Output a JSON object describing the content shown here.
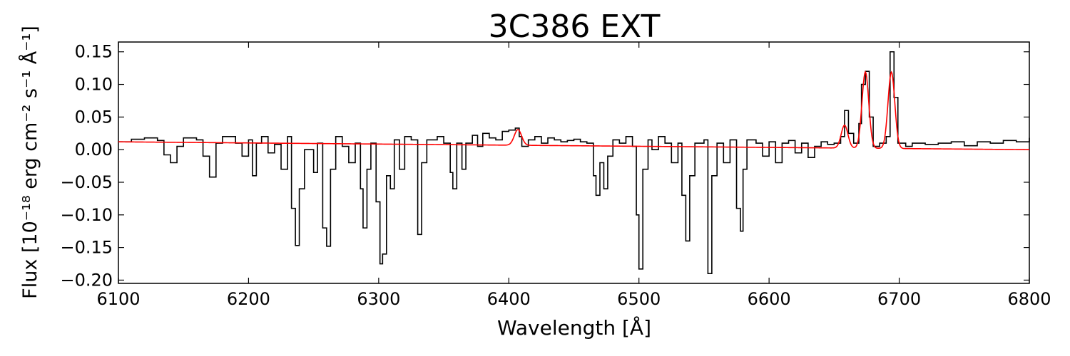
{
  "chart_data": {
    "type": "line",
    "title": "3C386 EXT",
    "xlabel": "Wavelength [Å]",
    "ylabel": "Flux [10⁻¹⁸ erg cm⁻² s⁻¹ Å⁻¹]",
    "xlim": [
      6100,
      6800
    ],
    "ylim": [
      -0.205,
      0.165
    ],
    "x_ticks": [
      "6100",
      "6200",
      "6300",
      "6400",
      "6500",
      "6600",
      "6700",
      "6800"
    ],
    "y_ticks": [
      "0.15",
      "0.10",
      "0.05",
      "0.00",
      "−0.05",
      "−0.10",
      "−0.15",
      "−0.20"
    ],
    "grid": false,
    "series": [
      {
        "style": "steps",
        "color": "#000000",
        "points": [
          [
            6100,
            0.012
          ],
          [
            6110,
            0.016
          ],
          [
            6120,
            0.018
          ],
          [
            6130,
            0.014
          ],
          [
            6135,
            -0.008
          ],
          [
            6140,
            -0.02
          ],
          [
            6145,
            0.005
          ],
          [
            6150,
            0.018
          ],
          [
            6160,
            0.015
          ],
          [
            6165,
            -0.01
          ],
          [
            6170,
            -0.042
          ],
          [
            6175,
            0.01
          ],
          [
            6180,
            0.02
          ],
          [
            6190,
            0.01
          ],
          [
            6195,
            -0.01
          ],
          [
            6200,
            0.015
          ],
          [
            6203,
            -0.04
          ],
          [
            6206,
            0.01
          ],
          [
            6210,
            0.02
          ],
          [
            6215,
            -0.005
          ],
          [
            6220,
            0.008
          ],
          [
            6225,
            -0.03
          ],
          [
            6230,
            0.02
          ],
          [
            6233,
            -0.09
          ],
          [
            6236,
            -0.147
          ],
          [
            6239,
            -0.06
          ],
          [
            6243,
            0.0
          ],
          [
            6250,
            -0.035
          ],
          [
            6253,
            0.01
          ],
          [
            6257,
            -0.12
          ],
          [
            6260,
            -0.148
          ],
          [
            6263,
            -0.03
          ],
          [
            6267,
            0.02
          ],
          [
            6272,
            0.005
          ],
          [
            6277,
            -0.02
          ],
          [
            6282,
            0.01
          ],
          [
            6286,
            -0.06
          ],
          [
            6288,
            -0.12
          ],
          [
            6291,
            -0.03
          ],
          [
            6294,
            0.01
          ],
          [
            6298,
            -0.08
          ],
          [
            6301,
            -0.175
          ],
          [
            6303,
            -0.16
          ],
          [
            6306,
            -0.04
          ],
          [
            6309,
            -0.06
          ],
          [
            6312,
            0.015
          ],
          [
            6316,
            -0.03
          ],
          [
            6320,
            0.02
          ],
          [
            6325,
            0.015
          ],
          [
            6330,
            -0.13
          ],
          [
            6333,
            -0.02
          ],
          [
            6337,
            0.015
          ],
          [
            6345,
            0.02
          ],
          [
            6350,
            0.01
          ],
          [
            6355,
            -0.035
          ],
          [
            6357,
            -0.06
          ],
          [
            6360,
            0.01
          ],
          [
            6364,
            -0.03
          ],
          [
            6367,
            0.01
          ],
          [
            6372,
            0.022
          ],
          [
            6376,
            0.005
          ],
          [
            6380,
            0.025
          ],
          [
            6385,
            0.018
          ],
          [
            6390,
            0.015
          ],
          [
            6395,
            0.028
          ],
          [
            6400,
            0.03
          ],
          [
            6405,
            0.033
          ],
          [
            6408,
            0.02
          ],
          [
            6410,
            0.005
          ],
          [
            6415,
            0.015
          ],
          [
            6420,
            0.02
          ],
          [
            6425,
            0.01
          ],
          [
            6430,
            0.018
          ],
          [
            6435,
            0.015
          ],
          [
            6440,
            0.012
          ],
          [
            6445,
            0.014
          ],
          [
            6450,
            0.016
          ],
          [
            6455,
            0.012
          ],
          [
            6460,
            0.01
          ],
          [
            6465,
            -0.04
          ],
          [
            6467,
            -0.07
          ],
          [
            6470,
            -0.02
          ],
          [
            6473,
            -0.06
          ],
          [
            6476,
            -0.01
          ],
          [
            6480,
            0.015
          ],
          [
            6485,
            0.01
          ],
          [
            6490,
            0.02
          ],
          [
            6495,
            0.005
          ],
          [
            6498,
            -0.1
          ],
          [
            6500,
            -0.183
          ],
          [
            6503,
            -0.03
          ],
          [
            6507,
            0.015
          ],
          [
            6510,
            0.0
          ],
          [
            6515,
            0.02
          ],
          [
            6520,
            0.01
          ],
          [
            6525,
            -0.02
          ],
          [
            6530,
            0.01
          ],
          [
            6533,
            -0.07
          ],
          [
            6536,
            -0.14
          ],
          [
            6539,
            -0.04
          ],
          [
            6543,
            0.01
          ],
          [
            6550,
            0.015
          ],
          [
            6553,
            -0.19
          ],
          [
            6556,
            -0.04
          ],
          [
            6560,
            0.01
          ],
          [
            6565,
            -0.02
          ],
          [
            6570,
            0.015
          ],
          [
            6575,
            -0.09
          ],
          [
            6578,
            -0.125
          ],
          [
            6580,
            -0.03
          ],
          [
            6583,
            0.015
          ],
          [
            6590,
            0.01
          ],
          [
            6595,
            -0.01
          ],
          [
            6600,
            0.012
          ],
          [
            6605,
            -0.02
          ],
          [
            6610,
            0.01
          ],
          [
            6615,
            0.014
          ],
          [
            6620,
            -0.005
          ],
          [
            6625,
            0.01
          ],
          [
            6630,
            -0.012
          ],
          [
            6635,
            0.005
          ],
          [
            6640,
            0.012
          ],
          [
            6645,
            0.008
          ],
          [
            6650,
            0.01
          ],
          [
            6655,
            0.02
          ],
          [
            6658,
            0.06
          ],
          [
            6661,
            0.025
          ],
          [
            6665,
            0.01
          ],
          [
            6669,
            0.04
          ],
          [
            6671,
            0.1
          ],
          [
            6674,
            0.12
          ],
          [
            6677,
            0.05
          ],
          [
            6680,
            0.005
          ],
          [
            6685,
            0.01
          ],
          [
            6690,
            0.02
          ],
          [
            6693,
            0.15
          ],
          [
            6696,
            0.08
          ],
          [
            6699,
            0.01
          ],
          [
            6705,
            0.005
          ],
          [
            6710,
            0.01
          ],
          [
            6720,
            0.008
          ],
          [
            6730,
            0.01
          ],
          [
            6740,
            0.012
          ],
          [
            6750,
            0.006
          ],
          [
            6760,
            0.012
          ],
          [
            6770,
            0.01
          ],
          [
            6780,
            0.014
          ],
          [
            6790,
            0.012
          ],
          [
            6800,
            0.018
          ]
        ]
      },
      {
        "style": "line",
        "color": "#ff0000",
        "baseline": [
          [
            6100,
            0.012
          ],
          [
            6800,
            0.0
          ]
        ],
        "gaussians": [
          {
            "center": 6407,
            "amplitude": 0.024,
            "sigma": 2.8
          },
          {
            "center": 6658,
            "amplitude": 0.035,
            "sigma": 2.6
          },
          {
            "center": 6674,
            "amplitude": 0.117,
            "sigma": 2.6
          },
          {
            "center": 6694,
            "amplitude": 0.117,
            "sigma": 2.6
          }
        ]
      }
    ]
  }
}
